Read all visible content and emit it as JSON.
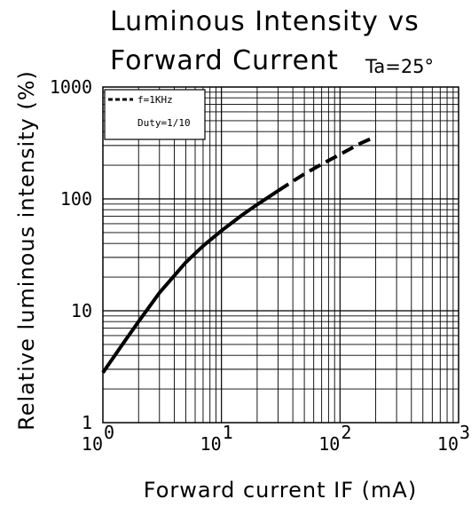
{
  "chart_data": {
    "type": "line",
    "title_line1": "Luminous Intensity vs",
    "title_line2": "Forward Current",
    "condition": "Ta=25°",
    "xlabel": "Forward current IF (mA)",
    "ylabel": "Relative luminous intensity (%)",
    "x_scale": "log",
    "y_scale": "log",
    "xlim": [
      1,
      1000
    ],
    "ylim": [
      1,
      1000
    ],
    "grid": true,
    "x_ticks": [
      {
        "base": "10",
        "exp": "0",
        "value": 1
      },
      {
        "base": "10",
        "exp": "1",
        "value": 10
      },
      {
        "base": "10",
        "exp": "2",
        "value": 100
      },
      {
        "base": "10",
        "exp": "3",
        "value": 1000
      }
    ],
    "y_ticks": [
      {
        "label": "1",
        "value": 1
      },
      {
        "label": "10",
        "value": 10
      },
      {
        "label": "100",
        "value": 100
      },
      {
        "label": "1000",
        "value": 1000
      }
    ],
    "legend": {
      "position": "top-left",
      "line1": "f=1KHz",
      "line2": "Duty=1/10"
    },
    "series": [
      {
        "style": "solid",
        "x": [
          1,
          1.5,
          2,
          3,
          5,
          7,
          10,
          15,
          20,
          30
        ],
        "y": [
          2.8,
          5.2,
          8,
          14.5,
          27,
          38,
          52,
          72,
          89,
          118
        ]
      },
      {
        "style": "dashed",
        "x": [
          30,
          50,
          70,
          100,
          150,
          200
        ],
        "y": [
          118,
          167,
          204,
          250,
          315,
          360
        ]
      }
    ]
  }
}
